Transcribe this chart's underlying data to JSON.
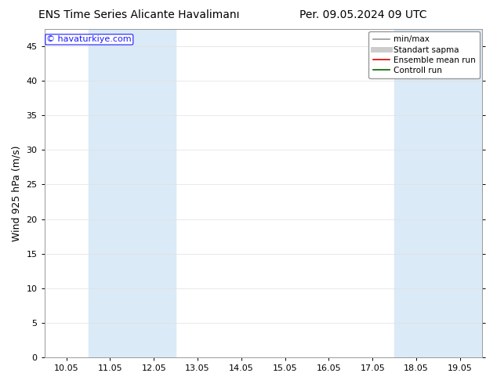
{
  "title_left": "ENS Time Series Alicante Havalimanı",
  "title_right": "Per. 09.05.2024 09 UTC",
  "ylabel": "Wind 925 hPa (m/s)",
  "watermark": "© havaturkiye.com",
  "ylim": [
    0,
    47.5
  ],
  "yticks": [
    0,
    5,
    10,
    15,
    20,
    25,
    30,
    35,
    40,
    45
  ],
  "x_labels": [
    "10.05",
    "11.05",
    "12.05",
    "13.05",
    "14.05",
    "15.05",
    "16.05",
    "17.05",
    "18.05",
    "19.05"
  ],
  "x_values": [
    0,
    1,
    2,
    3,
    4,
    5,
    6,
    7,
    8,
    9
  ],
  "xlim": [
    -0.5,
    9.5
  ],
  "shaded_bands": [
    [
      0.5,
      1.5
    ],
    [
      1.5,
      2.5
    ],
    [
      7.5,
      8.5
    ],
    [
      8.5,
      9.5
    ]
  ],
  "band_color": "#daeaf7",
  "bg_color": "#ffffff",
  "plot_bg_color": "#ffffff",
  "legend_items": [
    {
      "label": "min/max",
      "color": "#999999",
      "lw": 1.2,
      "style": "-"
    },
    {
      "label": "Standart sapma",
      "color": "#cccccc",
      "lw": 5,
      "style": "-"
    },
    {
      "label": "Ensemble mean run",
      "color": "#dd0000",
      "lw": 1.2,
      "style": "-"
    },
    {
      "label": "Controll run",
      "color": "#006600",
      "lw": 1.2,
      "style": "-"
    }
  ],
  "title_fontsize": 10,
  "ylabel_fontsize": 9,
  "tick_fontsize": 8,
  "watermark_color": "#1a1aff",
  "watermark_fontsize": 8,
  "grid_color": "#e0e0e0",
  "spine_color": "#999999",
  "legend_fontsize": 7.5
}
